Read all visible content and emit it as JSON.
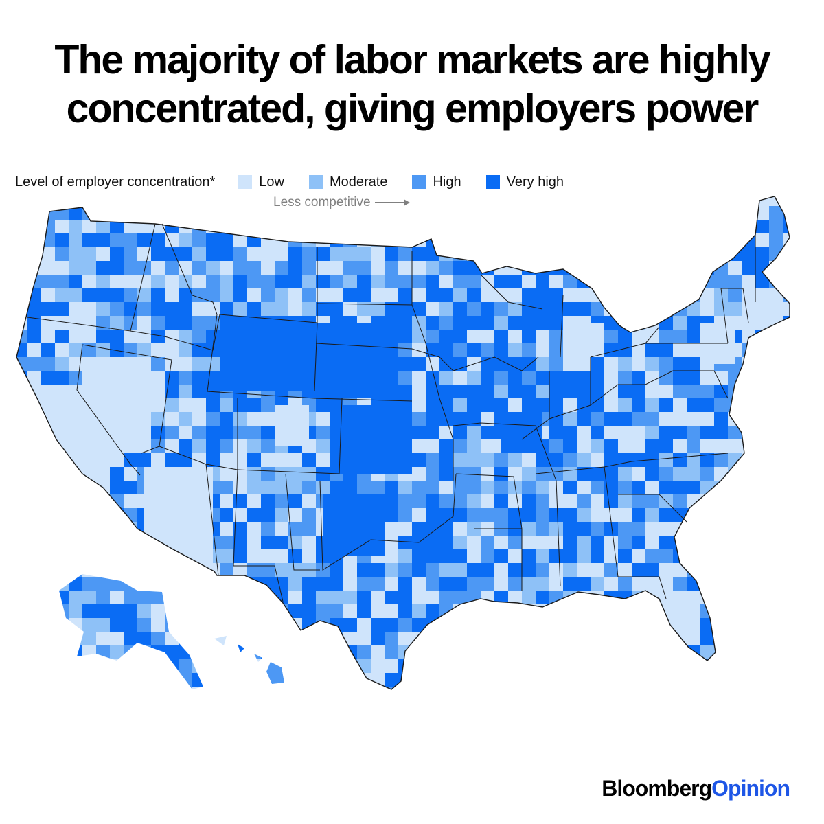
{
  "title": {
    "line1": "The majority of labor markets are highly",
    "line2": "concentrated, giving employers power"
  },
  "legend": {
    "label": "Level of employer concentration*",
    "items": [
      {
        "label": "Low",
        "color": "#cfe4fb"
      },
      {
        "label": "Moderate",
        "color": "#8ec1f7"
      },
      {
        "label": "High",
        "color": "#4d98f4"
      },
      {
        "label": "Very high",
        "color": "#0a6cf4"
      }
    ],
    "direction": "Less competitive"
  },
  "map": {
    "type": "choropleth",
    "region": "United States",
    "border_color": "#1a1a1a"
  },
  "logo": {
    "part1": "Bloomberg",
    "part2": "Opinion",
    "accent": "#1e56e6"
  }
}
